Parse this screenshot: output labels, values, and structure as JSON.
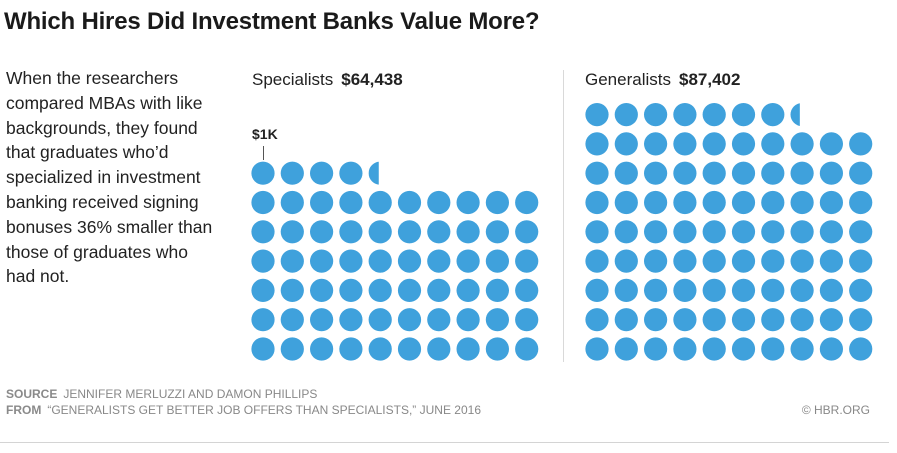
{
  "title": "Which Hires Did Investment Banks Value More?",
  "description": "When the researchers compared MBAs with like backgrounds, they found that graduates who’d specialized in investment banking received signing bonuses 36% smaller than those of graduates who had not.",
  "chart_data": {
    "type": "pictogram",
    "unit_label": "$1K",
    "unit_value": 1000,
    "series": [
      {
        "name": "Specialists",
        "label": "$64,438",
        "value": 64438
      },
      {
        "name": "Generalists",
        "label": "$87,402",
        "value": 87402
      }
    ]
  },
  "colors": {
    "dot": "#3fa1dc",
    "text": "#222222",
    "muted": "#888888"
  },
  "footer": {
    "source_key": "SOURCE",
    "source_text": "JENNIFER MERLUZZI AND DAMON PHILLIPS",
    "from_key": "FROM",
    "from_text": "“GENERALISTS GET BETTER JOB OFFERS THAN SPECIALISTS,” JUNE 2016",
    "credit": "© HBR.ORG"
  }
}
